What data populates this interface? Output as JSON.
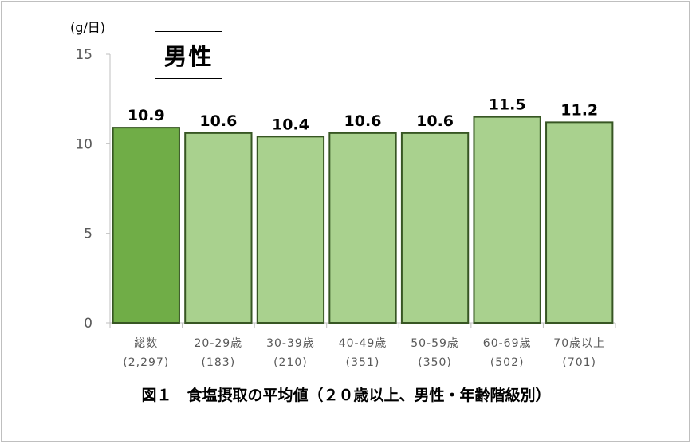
{
  "chart_data": {
    "type": "bar",
    "ylabel": "(g/日)",
    "ylim": [
      0,
      15
    ],
    "yticks": [
      0,
      5,
      10,
      15
    ],
    "badge": "男性",
    "caption": "図１　食塩摂取の平均値（２０歳以上、男性・年齢階級別）",
    "categories": [
      {
        "label": "総数",
        "n": "(2,297)"
      },
      {
        "label": "20-29歳",
        "n": "(183)"
      },
      {
        "label": "30-39歳",
        "n": "(210)"
      },
      {
        "label": "40-49歳",
        "n": "(351)"
      },
      {
        "label": "50-59歳",
        "n": "(350)"
      },
      {
        "label": "60-69歳",
        "n": "(502)"
      },
      {
        "label": "70歳以上",
        "n": "(701)"
      }
    ],
    "values": [
      10.9,
      10.6,
      10.4,
      10.6,
      10.6,
      11.5,
      11.2
    ],
    "value_labels": [
      "10.9",
      "10.6",
      "10.4",
      "10.6",
      "10.6",
      "11.5",
      "11.2"
    ],
    "colors": {
      "total_bar": "#70ad47",
      "age_bar": "#a9d18e",
      "bar_border": "#375623",
      "axis": "#bfbfbf",
      "tick_text": "#595959"
    }
  }
}
